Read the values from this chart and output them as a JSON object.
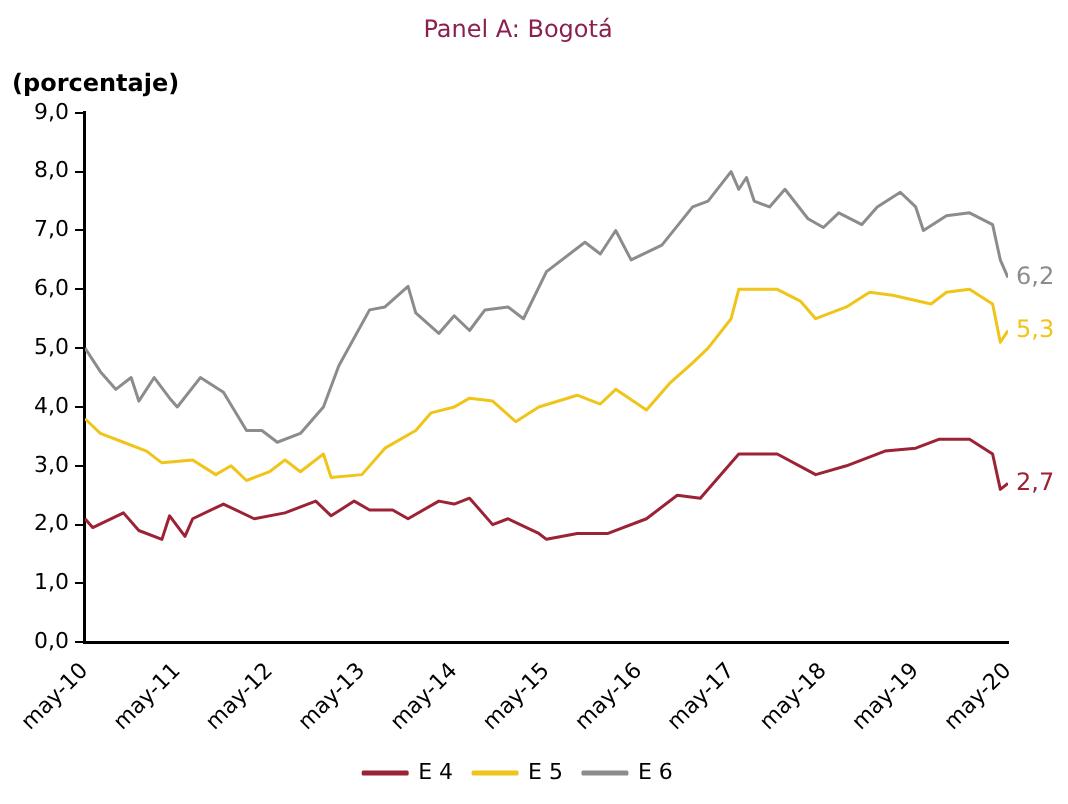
{
  "chart_data": {
    "type": "line",
    "title": "Panel A: Bogotá",
    "ylabel": "(porcentaje)",
    "xlim": [
      "2010-05",
      "2020-05"
    ],
    "xticks": [
      {
        "value": "2010-05",
        "label": "may-10"
      },
      {
        "value": "2011-05",
        "label": "may-11"
      },
      {
        "value": "2012-05",
        "label": "may-12"
      },
      {
        "value": "2013-05",
        "label": "may-13"
      },
      {
        "value": "2014-05",
        "label": "may-14"
      },
      {
        "value": "2015-05",
        "label": "may-15"
      },
      {
        "value": "2016-05",
        "label": "may-16"
      },
      {
        "value": "2017-05",
        "label": "may-17"
      },
      {
        "value": "2018-05",
        "label": "may-18"
      },
      {
        "value": "2019-05",
        "label": "may-19"
      },
      {
        "value": "2020-05",
        "label": "may-20"
      }
    ],
    "ylim": [
      0,
      9
    ],
    "yticks": [
      {
        "value": 0,
        "label": "0,0"
      },
      {
        "value": 1,
        "label": "1,0"
      },
      {
        "value": 2,
        "label": "2,0"
      },
      {
        "value": 3,
        "label": "3,0"
      },
      {
        "value": 4,
        "label": "4,0"
      },
      {
        "value": 5,
        "label": "5,0"
      },
      {
        "value": 6,
        "label": "6,0"
      },
      {
        "value": 7,
        "label": "7,0"
      },
      {
        "value": 8,
        "label": "8,0"
      },
      {
        "value": 9,
        "label": "9,0"
      }
    ],
    "grid": false,
    "legend": "bottom",
    "marker": "none",
    "line_style": "solid",
    "series": [
      {
        "name": "E 4",
        "color": "#9b2335",
        "x": [
          "2010-05",
          "2010-06",
          "2010-10",
          "2010-12",
          "2011-03",
          "2011-04",
          "2011-06",
          "2011-07",
          "2011-11",
          "2012-03",
          "2012-07",
          "2012-11",
          "2013-01",
          "2013-04",
          "2013-06",
          "2013-09",
          "2013-11",
          "2014-03",
          "2014-05",
          "2014-07",
          "2014-10",
          "2014-12",
          "2015-04",
          "2015-05",
          "2015-09",
          "2016-01",
          "2016-06",
          "2016-10",
          "2017-01",
          "2017-06",
          "2017-11",
          "2018-04",
          "2018-08",
          "2019-01",
          "2019-05",
          "2019-08",
          "2019-12",
          "2020-03",
          "2020-04",
          "2020-05"
        ],
        "values": [
          2.1,
          1.95,
          2.2,
          1.9,
          1.75,
          2.15,
          1.8,
          2.1,
          2.35,
          2.1,
          2.2,
          2.4,
          2.15,
          2.4,
          2.25,
          2.25,
          2.1,
          2.4,
          2.35,
          2.45,
          2.0,
          2.1,
          1.85,
          1.75,
          1.85,
          1.85,
          2.1,
          2.5,
          2.45,
          3.2,
          3.2,
          2.85,
          3.0,
          3.25,
          3.3,
          3.45,
          3.45,
          3.2,
          2.6,
          2.7
        ]
      },
      {
        "name": "E 5",
        "color": "#f0c419",
        "x": [
          "2010-05",
          "2010-07",
          "2010-10",
          "2011-01",
          "2011-03",
          "2011-07",
          "2011-10",
          "2011-12",
          "2012-02",
          "2012-05",
          "2012-07",
          "2012-09",
          "2012-12",
          "2013-01",
          "2013-05",
          "2013-08",
          "2013-12",
          "2014-02",
          "2014-05",
          "2014-07",
          "2014-10",
          "2015-01",
          "2015-04",
          "2015-09",
          "2015-12",
          "2016-02",
          "2016-06",
          "2016-09",
          "2016-12",
          "2017-02",
          "2017-05",
          "2017-06",
          "2017-11",
          "2018-02",
          "2018-04",
          "2018-08",
          "2018-11",
          "2019-02",
          "2019-07",
          "2019-09",
          "2019-12",
          "2020-03",
          "2020-04",
          "2020-05"
        ],
        "values": [
          3.8,
          3.55,
          3.4,
          3.25,
          3.05,
          3.1,
          2.85,
          3.0,
          2.75,
          2.9,
          3.1,
          2.9,
          3.2,
          2.8,
          2.85,
          3.3,
          3.6,
          3.9,
          4.0,
          4.15,
          4.1,
          3.75,
          4.0,
          4.2,
          4.05,
          4.3,
          3.95,
          4.4,
          4.75,
          5.0,
          5.5,
          6.0,
          6.0,
          5.8,
          5.5,
          5.7,
          5.95,
          5.9,
          5.75,
          5.95,
          6.0,
          5.75,
          5.1,
          5.3
        ]
      },
      {
        "name": "E 6",
        "color": "#8c8c8c",
        "x": [
          "2010-05",
          "2010-07",
          "2010-09",
          "2010-11",
          "2010-12",
          "2011-02",
          "2011-04",
          "2011-05",
          "2011-08",
          "2011-11",
          "2012-02",
          "2012-04",
          "2012-06",
          "2012-09",
          "2012-12",
          "2013-02",
          "2013-06",
          "2013-08",
          "2013-11",
          "2013-12",
          "2014-03",
          "2014-05",
          "2014-07",
          "2014-09",
          "2014-12",
          "2015-02",
          "2015-05",
          "2015-10",
          "2015-12",
          "2016-02",
          "2016-04",
          "2016-08",
          "2016-12",
          "2017-02",
          "2017-05",
          "2017-06",
          "2017-07",
          "2017-08",
          "2017-10",
          "2017-12",
          "2018-03",
          "2018-05",
          "2018-07",
          "2018-10",
          "2018-12",
          "2019-03",
          "2019-05",
          "2019-06",
          "2019-09",
          "2019-12",
          "2020-03",
          "2020-04",
          "2020-05"
        ],
        "values": [
          5.0,
          4.6,
          4.3,
          4.5,
          4.1,
          4.5,
          4.15,
          4.0,
          4.5,
          4.25,
          3.6,
          3.6,
          3.4,
          3.55,
          4.0,
          4.7,
          5.65,
          5.7,
          6.05,
          5.6,
          5.25,
          5.55,
          5.3,
          5.65,
          5.7,
          5.5,
          6.3,
          6.8,
          6.6,
          7.0,
          6.5,
          6.75,
          7.4,
          7.5,
          8.0,
          7.7,
          7.9,
          7.5,
          7.4,
          7.7,
          7.2,
          7.05,
          7.3,
          7.1,
          7.4,
          7.65,
          7.4,
          7.0,
          7.25,
          7.3,
          7.1,
          6.5,
          6.2
        ]
      }
    ],
    "annotations": [
      {
        "text": "2,7",
        "x": "2020-05",
        "y": 2.7
      },
      {
        "text": "5,3",
        "x": "2020-05",
        "y": 5.3
      },
      {
        "text": "6,2",
        "x": "2020-05",
        "y": 6.2
      }
    ]
  }
}
